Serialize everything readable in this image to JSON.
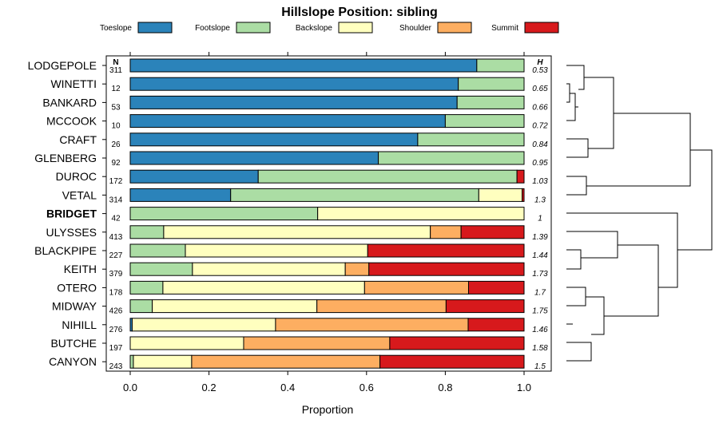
{
  "chart_data": {
    "type": "bar",
    "stacked": true,
    "orientation": "horizontal",
    "title": "Hillslope Position: sibling",
    "xlabel": "Proportion",
    "ylabel": "",
    "xlim": [
      0,
      1
    ],
    "x_ticks": [
      "0.0",
      "0.2",
      "0.4",
      "0.6",
      "0.8",
      "1.0"
    ],
    "n_header": "N",
    "h_header": "H",
    "legend_position": "top",
    "segments": [
      {
        "name": "Toeslope",
        "color": "#2b83ba"
      },
      {
        "name": "Footslope",
        "color": "#abdda4"
      },
      {
        "name": "Backslope",
        "color": "#ffffbf"
      },
      {
        "name": "Shoulder",
        "color": "#fdae61"
      },
      {
        "name": "Summit",
        "color": "#d7191c"
      }
    ],
    "rows": [
      {
        "label": "LODGEPOLE",
        "n": "311",
        "h": "0.53",
        "values": [
          0.88,
          0.12,
          0,
          0,
          0
        ],
        "bold": false
      },
      {
        "label": "WINETTI",
        "n": "12",
        "h": "0.65",
        "values": [
          0.833,
          0.167,
          0,
          0,
          0
        ],
        "bold": false
      },
      {
        "label": "BANKARD",
        "n": "53",
        "h": "0.66",
        "values": [
          0.83,
          0.17,
          0,
          0,
          0
        ],
        "bold": false
      },
      {
        "label": "MCCOOK",
        "n": "10",
        "h": "0.72",
        "values": [
          0.8,
          0.2,
          0,
          0,
          0
        ],
        "bold": false
      },
      {
        "label": "CRAFT",
        "n": "26",
        "h": "0.84",
        "values": [
          0.73,
          0.27,
          0,
          0,
          0
        ],
        "bold": false
      },
      {
        "label": "GLENBERG",
        "n": "92",
        "h": "0.95",
        "values": [
          0.63,
          0.37,
          0,
          0,
          0
        ],
        "bold": false
      },
      {
        "label": "DUROC",
        "n": "172",
        "h": "1.03",
        "values": [
          0.325,
          0.657,
          0,
          0,
          0.018
        ],
        "bold": false
      },
      {
        "label": "VETAL",
        "n": "314",
        "h": "1.3",
        "values": [
          0.255,
          0.63,
          0.11,
          0,
          0.005
        ],
        "bold": false
      },
      {
        "label": "BRIDGET",
        "n": "42",
        "h": "1",
        "values": [
          0,
          0.476,
          0.524,
          0,
          0
        ],
        "bold": true
      },
      {
        "label": "ULYSSES",
        "n": "413",
        "h": "1.39",
        "values": [
          0,
          0.085,
          0.677,
          0.078,
          0.16
        ],
        "bold": false
      },
      {
        "label": "BLACKPIPE",
        "n": "227",
        "h": "1.44",
        "values": [
          0,
          0.14,
          0.463,
          0,
          0.397
        ],
        "bold": false
      },
      {
        "label": "KEITH",
        "n": "379",
        "h": "1.73",
        "values": [
          0,
          0.158,
          0.388,
          0.06,
          0.394
        ],
        "bold": false
      },
      {
        "label": "OTERO",
        "n": "178",
        "h": "1.7",
        "values": [
          0,
          0.083,
          0.512,
          0.264,
          0.141
        ],
        "bold": false
      },
      {
        "label": "MIDWAY",
        "n": "426",
        "h": "1.75",
        "values": [
          0,
          0.056,
          0.418,
          0.328,
          0.198
        ],
        "bold": false
      },
      {
        "label": "NIHILL",
        "n": "276",
        "h": "1.46",
        "values": [
          0.005,
          0,
          0.364,
          0.489,
          0.142
        ],
        "bold": false
      },
      {
        "label": "BUTCHE",
        "n": "197",
        "h": "1.58",
        "values": [
          0,
          0,
          0.288,
          0.371,
          0.341
        ],
        "bold": false
      },
      {
        "label": "CANYON",
        "n": "243",
        "h": "1.5",
        "values": [
          0,
          0.008,
          0.148,
          0.478,
          0.366
        ],
        "bold": false
      }
    ]
  }
}
